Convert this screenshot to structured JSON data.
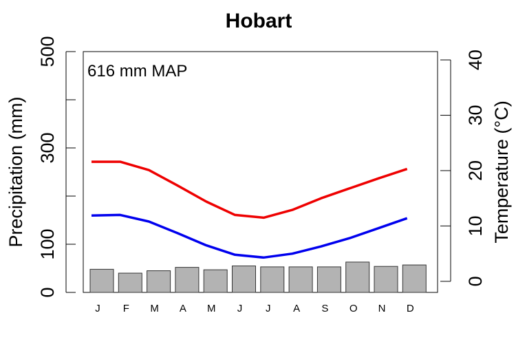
{
  "chart_data": {
    "type": "bar",
    "title": "Hobart",
    "annotation": "616 mm MAP",
    "categories": [
      "J",
      "F",
      "M",
      "A",
      "M",
      "J",
      "J",
      "A",
      "S",
      "O",
      "N",
      "D"
    ],
    "precipitation": {
      "ylabel": "Precipitation (mm)",
      "ylim": [
        0,
        500
      ],
      "ticks": [
        0,
        100,
        300,
        500
      ],
      "values": [
        48,
        40,
        45,
        52,
        47,
        55,
        53,
        53,
        53,
        63,
        54,
        57
      ],
      "color": "#b3b3b3"
    },
    "temperature": {
      "ylabel": "Temperature (°C)",
      "ylim": [
        -2,
        41.5
      ],
      "ticks": [
        0,
        10,
        20,
        30,
        40
      ],
      "series": [
        {
          "values": [
            21.6,
            21.6,
            20.1,
            17.3,
            14.4,
            12.0,
            11.5,
            12.9,
            15.0,
            16.8,
            18.6,
            20.3
          ],
          "color": "#ee0000"
        },
        {
          "values": [
            11.9,
            12.0,
            10.8,
            8.7,
            6.5,
            4.8,
            4.3,
            5.0,
            6.3,
            7.8,
            9.6,
            11.4
          ],
          "color": "#0000ee"
        }
      ]
    },
    "grid": false
  }
}
